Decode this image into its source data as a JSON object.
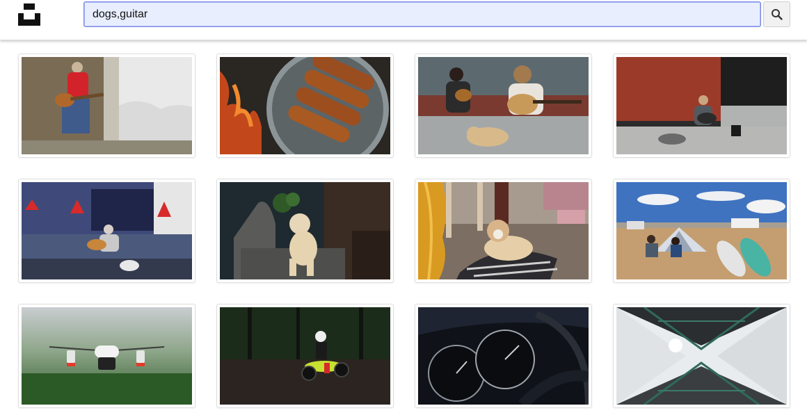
{
  "header": {
    "logo_icon": "unsplash-logo-icon",
    "search": {
      "value": "dogs,guitar",
      "placeholder": ""
    },
    "search_button_icon": "search-icon"
  },
  "results": [
    {
      "subject": "street-musician-guitar-photo"
    },
    {
      "subject": "sausages-in-pan-photo"
    },
    {
      "subject": "two-women-guitars-dog-photo"
    },
    {
      "subject": "busker-with-dogs-brick-wall-photo"
    },
    {
      "subject": "man-guitar-dog-street-photo"
    },
    {
      "subject": "poodle-on-sofa-photo"
    },
    {
      "subject": "dog-on-blanket-guitar-photo"
    },
    {
      "subject": "beach-tent-paddleboards-photo"
    },
    {
      "subject": "drone-flying-photo"
    },
    {
      "subject": "motocross-rider-photo"
    },
    {
      "subject": "car-dashboard-gauges-photo"
    },
    {
      "subject": "skylight-architecture-photo"
    }
  ]
}
